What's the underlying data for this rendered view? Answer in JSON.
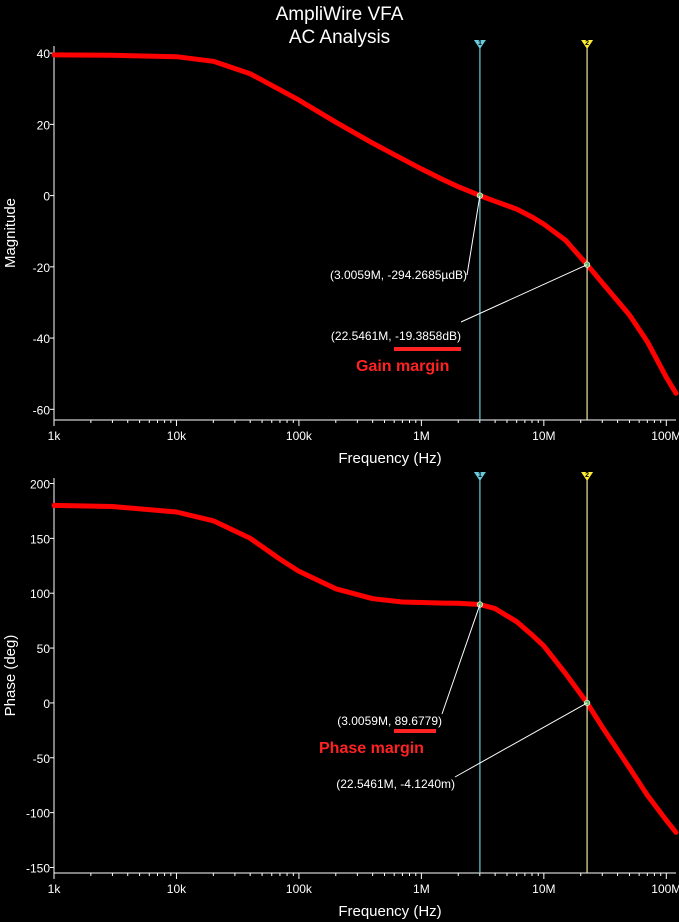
{
  "title_line1": "AmpliWire VFA",
  "title_line2": "AC Analysis",
  "colors": {
    "background": "#000000",
    "curve": "#ff0000",
    "cursor1": "#66ccdd",
    "cursor2": "#f0e6a0",
    "cursor2_flag": "#ffee33",
    "annotation": "#ff2222",
    "axis": "#ffffff",
    "marker": "#66bb66"
  },
  "chart_data": [
    {
      "type": "line",
      "title": "AmpliWire VFA AC Analysis",
      "xlabel": "Frequency (Hz)",
      "ylabel": "Magnitude",
      "xscale": "log",
      "xlim": [
        1000,
        120000000
      ],
      "ylim": [
        -63,
        42
      ],
      "xticks": [
        1000,
        10000,
        100000,
        1000000,
        10000000,
        100000000
      ],
      "xtick_labels": [
        "1k",
        "10k",
        "100k",
        "1M",
        "10M",
        "100M"
      ],
      "yticks": [
        40,
        20,
        0,
        -20,
        -40,
        -60
      ],
      "ytick_labels": [
        "40",
        "20",
        "0",
        "-20",
        "-40",
        "-60"
      ],
      "series": [
        {
          "name": "Magnitude",
          "x": [
            1000,
            3000,
            10000,
            20000,
            40000,
            70000,
            100000,
            200000,
            400000,
            700000,
            1000000,
            1500000,
            2000000,
            3005900,
            4000000,
            6000000,
            8000000,
            10000000,
            15000000,
            22546100,
            30000000,
            50000000,
            70000000,
            100000000,
            120000000
          ],
          "y": [
            39.5,
            39.4,
            39,
            37.7,
            34.2,
            29.7,
            26.8,
            20.6,
            14.7,
            10.3,
            7.5,
            4.5,
            2.5,
            0,
            -1.6,
            -3.8,
            -6,
            -8,
            -12.5,
            -19.4,
            -24.5,
            -33.5,
            -41,
            -51,
            -55.5
          ]
        }
      ],
      "cursors": [
        {
          "id": "1",
          "x": 3005900,
          "y": 0,
          "label": "(3.0059M, -294.2685µdB)"
        },
        {
          "id": "2",
          "x": 22546100,
          "y": -19.3858,
          "label": "(22.5461M, -19.3858dB)"
        }
      ],
      "annotations": [
        {
          "text": "Gain margin",
          "refers_to": "-19.3858dB"
        }
      ]
    },
    {
      "type": "line",
      "xlabel": "Frequency (Hz)",
      "ylabel": "Phase (deg)",
      "xscale": "log",
      "xlim": [
        1000,
        120000000
      ],
      "ylim": [
        -155,
        205
      ],
      "xticks": [
        1000,
        10000,
        100000,
        1000000,
        10000000,
        100000000
      ],
      "xtick_labels": [
        "1k",
        "10k",
        "100k",
        "1M",
        "10M",
        "100M"
      ],
      "yticks": [
        200,
        150,
        100,
        50,
        0,
        -50,
        -100,
        -150
      ],
      "ytick_labels": [
        "200",
        "150",
        "100",
        "50",
        "0",
        "-50",
        "-100",
        "-150"
      ],
      "series": [
        {
          "name": "Phase",
          "x": [
            1000,
            3000,
            10000,
            20000,
            40000,
            70000,
            100000,
            200000,
            400000,
            700000,
            1000000,
            1500000,
            2000000,
            3005900,
            4000000,
            6000000,
            8000000,
            10000000,
            15000000,
            22546100,
            30000000,
            50000000,
            70000000,
            100000000,
            120000000
          ],
          "y": [
            180,
            179,
            174,
            166,
            150,
            131,
            120,
            104,
            95,
            92,
            91.5,
            91,
            90.8,
            89.7,
            86,
            74,
            62,
            52,
            27,
            0,
            -22,
            -59,
            -84,
            -107,
            -118
          ]
        }
      ],
      "cursors": [
        {
          "id": "1",
          "x": 3005900,
          "y": 89.6779,
          "label": "(3.0059M, 89.6779)"
        },
        {
          "id": "2",
          "x": 22546100,
          "y": -0.004124,
          "label": "(22.5461M, -4.1240m)"
        }
      ],
      "annotations": [
        {
          "text": "Phase margin",
          "refers_to": "89.6779"
        }
      ]
    }
  ]
}
